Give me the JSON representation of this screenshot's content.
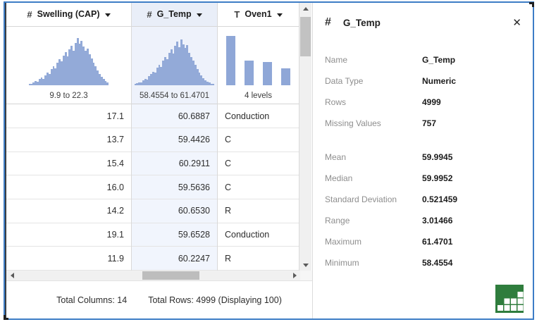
{
  "icons": {
    "numeric_type_glyph": "#",
    "text_type_glyph": "T",
    "close_glyph": "✕"
  },
  "colors": {
    "selection_border": "#3d7dc6",
    "histogram_bar": "#93aad8",
    "selected_column_tint": "#f1f5fd",
    "summary_icon_green": "#2f7d3d"
  },
  "table": {
    "columns": [
      {
        "name": "Swelling (CAP)",
        "type": "numeric",
        "type_glyph": "#",
        "range_label": "9.9 to 22.3",
        "selected": false,
        "histogram": [
          2,
          3,
          5,
          8,
          7,
          12,
          15,
          13,
          20,
          26,
          23,
          32,
          38,
          34,
          46,
          52,
          48,
          60,
          67,
          58,
          73,
          80,
          70,
          86,
          95,
          84,
          90,
          78,
          70,
          74,
          62,
          54,
          46,
          38,
          30,
          23,
          17,
          12,
          8,
          5
        ]
      },
      {
        "name": "G_Temp",
        "type": "numeric",
        "type_glyph": "#",
        "range_label": "58.4554 to 61.4701",
        "selected": true,
        "histogram": [
          2,
          4,
          6,
          5,
          9,
          13,
          11,
          18,
          23,
          27,
          25,
          35,
          41,
          37,
          50,
          57,
          52,
          66,
          72,
          64,
          79,
          88,
          77,
          92,
          83,
          75,
          81,
          65,
          57,
          49,
          41,
          33,
          25,
          19,
          14,
          10,
          7,
          5,
          3,
          2
        ]
      },
      {
        "name": "Oven1",
        "type": "text",
        "type_glyph": "T",
        "range_label": "4 levels",
        "selected": false,
        "bars": [
          100,
          49,
          47,
          34
        ]
      }
    ],
    "rows": [
      [
        "17.1",
        "60.6887",
        "Conduction"
      ],
      [
        "13.7",
        "59.4426",
        "C"
      ],
      [
        "15.4",
        "60.2911",
        "C"
      ],
      [
        "16.0",
        "59.5636",
        "C"
      ],
      [
        "14.2",
        "60.6530",
        "R"
      ],
      [
        "19.1",
        "59.6528",
        "Conduction"
      ],
      [
        "11.9",
        "60.2247",
        "R"
      ]
    ],
    "status": {
      "total_columns": "Total Columns: 14",
      "total_rows": "Total Rows: 4999 (Displaying 100)"
    }
  },
  "detail_panel": {
    "type_glyph": "#",
    "title": "G_Temp",
    "stats": [
      {
        "label": "Name",
        "value": "G_Temp"
      },
      {
        "label": "Data Type",
        "value": "Numeric"
      },
      {
        "label": "Rows",
        "value": "4999"
      },
      {
        "label": "Missing Values",
        "value": "757",
        "gap_after": true
      },
      {
        "label": "Mean",
        "value": "59.9945"
      },
      {
        "label": "Median",
        "value": "59.9952"
      },
      {
        "label": "Standard Deviation",
        "value": "0.521459"
      },
      {
        "label": "Range",
        "value": "3.01466"
      },
      {
        "label": "Maximum",
        "value": "61.4701"
      },
      {
        "label": "Minimum",
        "value": "58.4554"
      }
    ]
  }
}
